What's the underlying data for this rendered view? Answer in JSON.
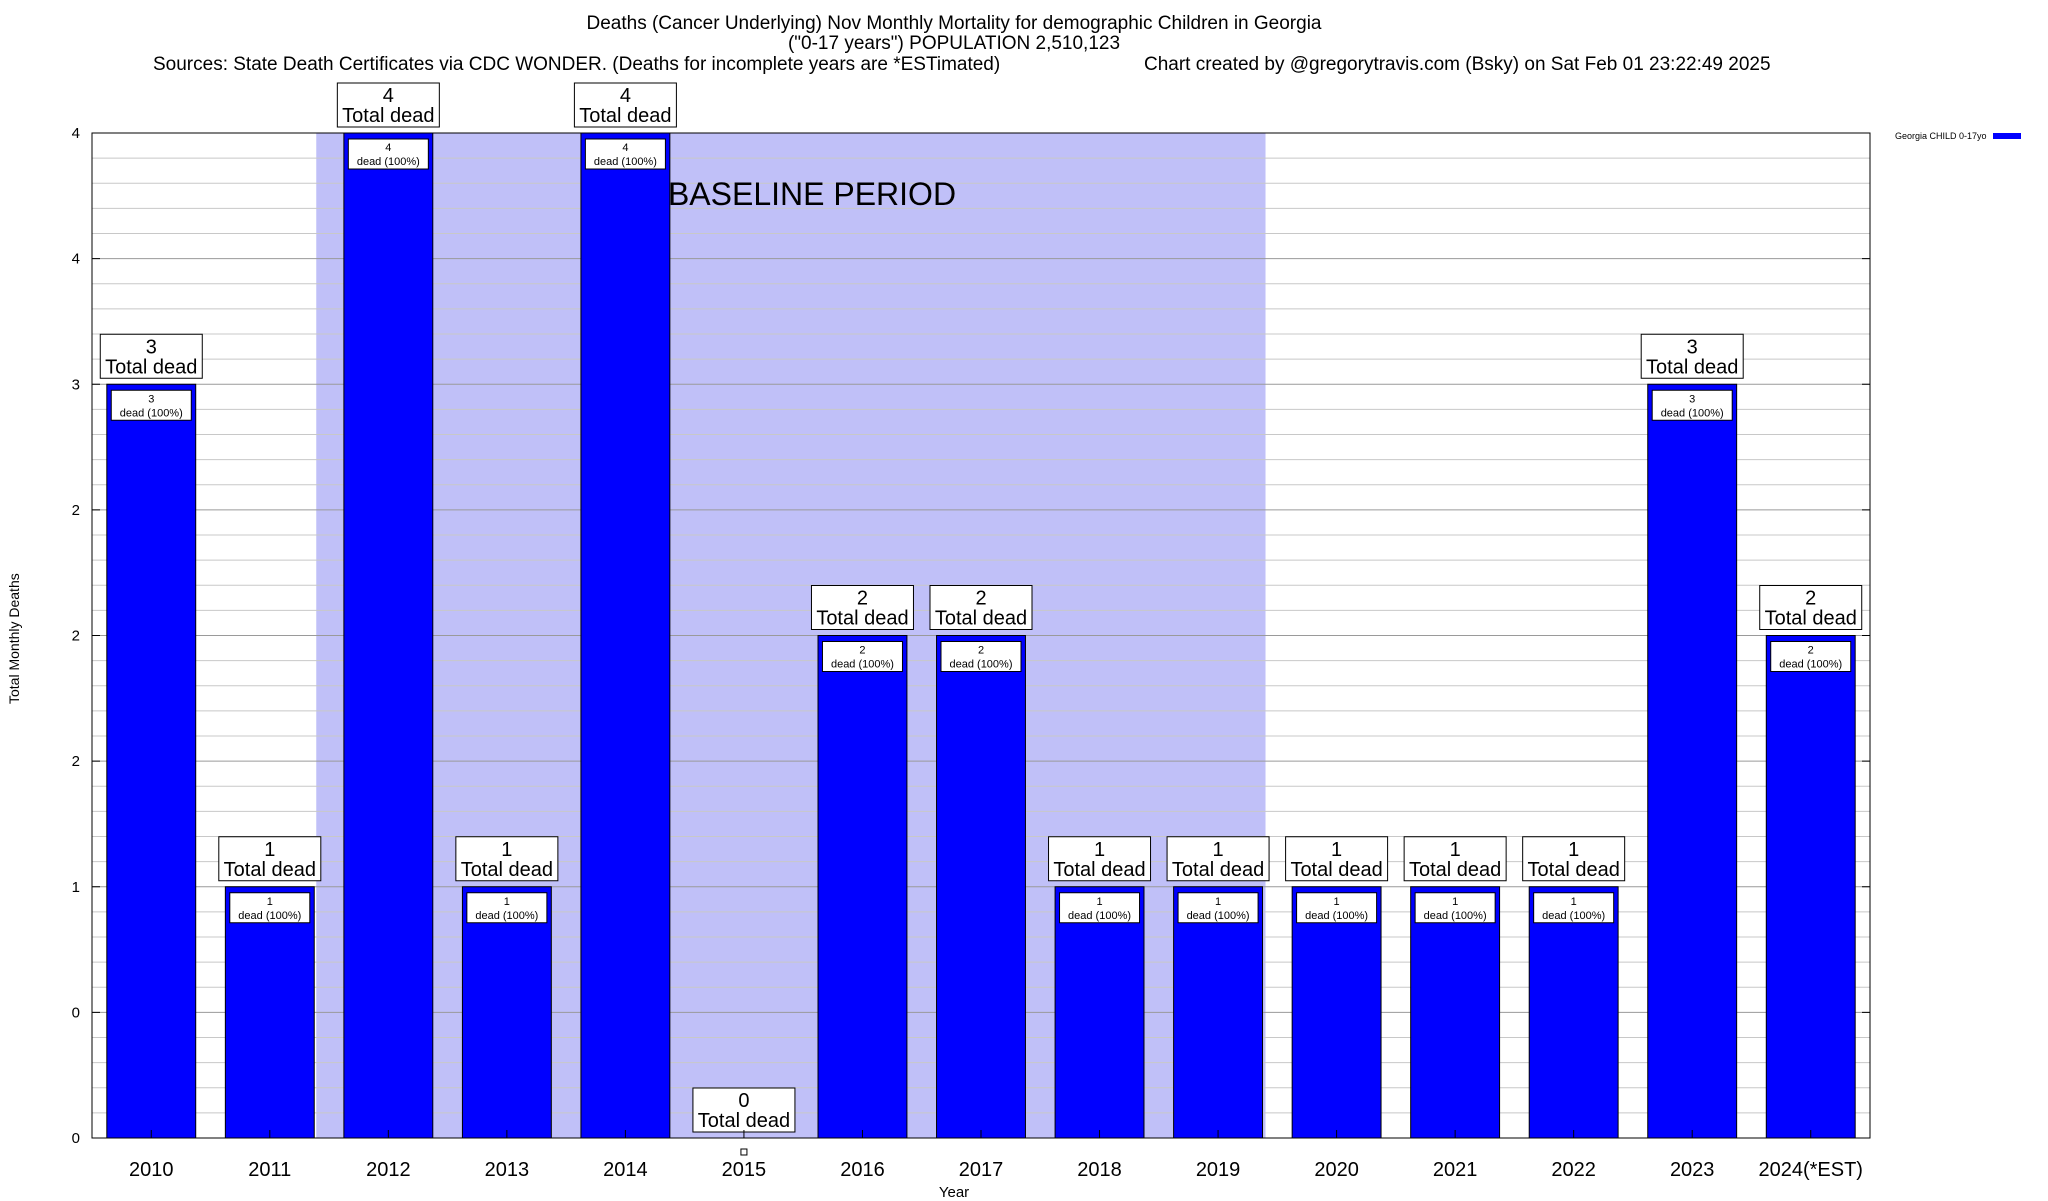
{
  "chart_data": {
    "type": "bar",
    "title": [
      "Deaths (Cancer Underlying) Nov Monthly Mortality for demographic Children in Georgia",
      "(\"0-17 years\") POPULATION 2,510,123"
    ],
    "sources": "Sources: State Death Certificates via CDC WONDER. (Deaths for incomplete years are *ESTimated)",
    "credit": "Chart created by @gregorytravis.com (Bsky) on Sat Feb 01 23:22:49 2025",
    "xlabel": "Year",
    "ylabel": "Total Monthly Deaths",
    "ylim": [
      0,
      4
    ],
    "y_tick_labels": [
      "0",
      "0",
      "1",
      "2",
      "2",
      "2",
      "3",
      "4",
      "4"
    ],
    "categories": [
      "2010",
      "2011",
      "2012",
      "2013",
      "2014",
      "2015",
      "2016",
      "2017",
      "2018",
      "2019",
      "2020",
      "2021",
      "2022",
      "2023",
      "2024(*EST)"
    ],
    "series": [
      {
        "name": "Georgia CHILD 0-17yo",
        "color": "#0000ff",
        "values": [
          3,
          1,
          4,
          1,
          4,
          0,
          2,
          2,
          1,
          1,
          1,
          1,
          1,
          3,
          2
        ]
      }
    ],
    "total_label_suffix": "Total dead",
    "inner_label_suffix": "dead (100%)",
    "baseline": {
      "label": "BASELINE PERIOD",
      "start": "2012",
      "end": "2019",
      "color": "#c0c0f8"
    },
    "grid": true,
    "legend_position": "top-right"
  }
}
